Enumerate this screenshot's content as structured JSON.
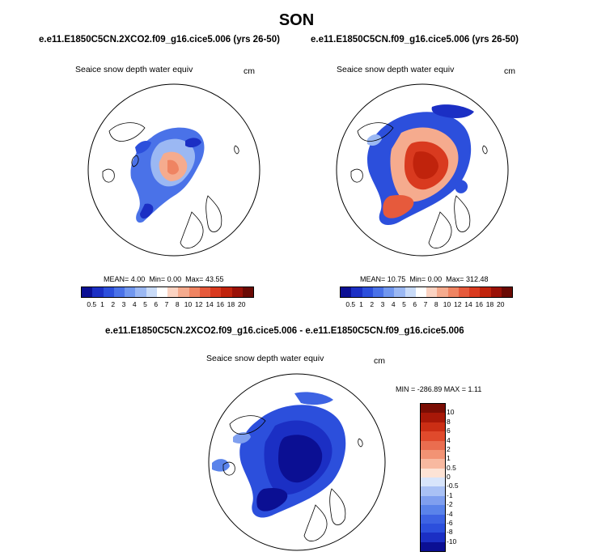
{
  "figure_title": "SON",
  "colors": {
    "scale": [
      "#0b0f93",
      "#1b2fc4",
      "#2c4fdc",
      "#4a72e8",
      "#7197ef",
      "#9bb8f3",
      "#c9dbf8",
      "#ffffff",
      "#fbd3c2",
      "#f5ab8e",
      "#ef8462",
      "#e65a3c",
      "#d93a1f",
      "#c0230c",
      "#9a1107",
      "#6a0a04"
    ],
    "diff_scale": [
      "#0b0f93",
      "#1b2fc4",
      "#2c4fdc",
      "#3d63e3",
      "#5a83ea",
      "#7f9fef",
      "#a9c1f5",
      "#d8e5fb",
      "#fde3d5",
      "#f8b9a0",
      "#f29374",
      "#ea6d4f",
      "#e04a2c",
      "#cb2e14",
      "#a81808",
      "#7a0d04"
    ],
    "ocean": "#ffffff",
    "coast": "#000000"
  },
  "panels": [
    {
      "case": "e.e11.E1850C5CN.2XCO2.f09_g16.cice5.006 (yrs 26-50)",
      "variable": "Seaice snow depth water equiv",
      "units": "cm",
      "mean_label": "MEAN=",
      "mean": "4.00",
      "min_label": "Min=",
      "min": "0.00",
      "max_label": "Max=",
      "max": "43.55"
    },
    {
      "case": "e.e11.E1850C5CN.f09_g16.cice5.006 (yrs 26-50)",
      "variable": "Seaice snow depth water equiv",
      "units": "cm",
      "mean_label": "MEAN=",
      "mean": "10.75",
      "min_label": "Min=",
      "min": "0.00",
      "max_label": "Max=",
      "max": "312.48"
    }
  ],
  "colorbar_ticks": [
    "0.5",
    "1",
    "2",
    "3",
    "4",
    "5",
    "6",
    "7",
    "8",
    "10",
    "12",
    "14",
    "16",
    "18",
    "20"
  ],
  "difference": {
    "title": "e.e11.E1850C5CN.2XCO2.f09_g16.cice5.006 - e.e11.E1850C5CN.f09_g16.cice5.006",
    "variable": "Seaice snow depth water equiv",
    "units": "cm",
    "minmax": "MIN = -286.89 MAX =   1.11",
    "ticks": [
      "10",
      "8",
      "6",
      "4",
      "2",
      "1",
      "0.5",
      "0",
      "-0.5",
      "-1",
      "-2",
      "-4",
      "-6",
      "-8",
      "-10"
    ]
  }
}
